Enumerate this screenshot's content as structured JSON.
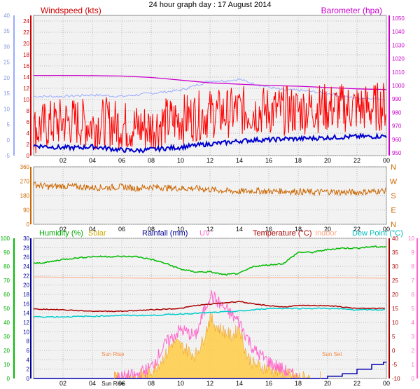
{
  "title": "24 hour graph day : 17 August 2014",
  "chart_data": [
    {
      "type": "line",
      "name": "wind-barometer",
      "labels": {
        "windspeed": "Windspeed (kts)",
        "barometer": "Barometer (hpa)"
      },
      "x_ticks": [
        "02",
        "04",
        "06",
        "08",
        "10",
        "12",
        "14",
        "16",
        "18",
        "20",
        "22",
        "00"
      ],
      "x_range": [
        0,
        24
      ],
      "axis_kts": {
        "range": [
          0,
          25
        ],
        "ticks": [
          "0",
          "2",
          "4",
          "6",
          "8",
          "10",
          "12",
          "14",
          "16",
          "18",
          "20",
          "22",
          "24"
        ]
      },
      "axis_f": {
        "range": [
          -5,
          40
        ],
        "ticks": [
          "-5",
          "0",
          "5",
          "10",
          "15",
          "20",
          "25",
          "30",
          "35",
          "40"
        ]
      },
      "axis_hpa": {
        "range": [
          948,
          1052
        ],
        "ticks": [
          "950",
          "960",
          "970",
          "980",
          "990",
          "1000",
          "1010",
          "1020",
          "1030",
          "1040",
          "1050"
        ]
      },
      "series": [
        {
          "key": "gust",
          "color": "#ff0000",
          "values": [
            [
              0,
              4.5
            ],
            [
              1,
              5.5
            ],
            [
              2,
              6
            ],
            [
              3,
              6
            ],
            [
              4,
              5.5
            ],
            [
              5,
              6
            ],
            [
              6,
              5.5
            ],
            [
              7,
              5
            ],
            [
              8,
              5
            ],
            [
              9,
              6
            ],
            [
              10,
              6.5
            ],
            [
              11,
              7
            ],
            [
              12,
              7.5
            ],
            [
              13,
              7.5
            ],
            [
              14,
              8
            ],
            [
              15,
              8
            ],
            [
              16,
              8
            ],
            [
              17,
              8
            ],
            [
              18,
              8
            ],
            [
              19,
              8.5
            ],
            [
              20,
              8.5
            ],
            [
              21,
              8.5
            ],
            [
              22,
              8.5
            ],
            [
              23,
              8.5
            ],
            [
              24,
              9
            ]
          ]
        },
        {
          "key": "average",
          "color": "#0000cc",
          "values": [
            [
              0,
              1.8
            ],
            [
              1,
              1.6
            ],
            [
              2,
              1.4
            ],
            [
              3,
              1.4
            ],
            [
              4,
              1.6
            ],
            [
              5,
              1.3
            ],
            [
              6,
              1
            ],
            [
              7,
              0.9
            ],
            [
              8,
              1.1
            ],
            [
              9,
              1.3
            ],
            [
              10,
              1.5
            ],
            [
              11,
              1.8
            ],
            [
              12,
              2.1
            ],
            [
              13,
              2.3
            ],
            [
              14,
              2.6
            ],
            [
              15,
              2.8
            ],
            [
              16,
              2.8
            ],
            [
              17,
              3
            ],
            [
              18,
              3
            ],
            [
              19,
              3.1
            ],
            [
              20,
              3.2
            ],
            [
              21,
              3.3
            ],
            [
              22,
              3.4
            ],
            [
              23,
              3.4
            ],
            [
              24,
              3.5
            ]
          ]
        },
        {
          "key": "barometer",
          "color": "#cc00cc",
          "values": [
            [
              0,
              1007.5
            ],
            [
              3,
              1007.5
            ],
            [
              6,
              1007
            ],
            [
              8,
              1006
            ],
            [
              10,
              1004
            ],
            [
              12,
              1002
            ],
            [
              14,
              1001
            ],
            [
              16,
              1000
            ],
            [
              18,
              999.5
            ],
            [
              20,
              998.5
            ],
            [
              22,
              997.5
            ],
            [
              24,
              997
            ]
          ]
        },
        {
          "key": "lightblue",
          "color": "#99aaff",
          "values": [
            [
              0,
              14
            ],
            [
              2,
              14
            ],
            [
              4,
              14.5
            ],
            [
              6,
              14
            ],
            [
              8,
              15
            ],
            [
              10,
              16
            ],
            [
              11,
              17.5
            ],
            [
              12,
              19
            ],
            [
              13,
              19
            ],
            [
              14,
              19.5
            ],
            [
              15,
              18
            ],
            [
              16,
              17
            ],
            [
              17,
              16
            ],
            [
              18,
              16
            ],
            [
              19,
              15.5
            ],
            [
              20,
              15
            ],
            [
              21,
              14
            ],
            [
              22,
              13.5
            ],
            [
              23,
              13.5
            ],
            [
              24,
              13
            ]
          ]
        }
      ]
    },
    {
      "type": "line",
      "name": "wind-direction",
      "y_ticks": [
        "0",
        "90",
        "180",
        "270",
        "360"
      ],
      "y_range": [
        0,
        360
      ],
      "compass": [
        "N",
        "W",
        "S",
        "E",
        "N"
      ],
      "x_ticks": [
        "02",
        "04",
        "06",
        "08",
        "10",
        "12",
        "14",
        "16",
        "18",
        "20",
        "22",
        "00"
      ],
      "series": [
        {
          "key": "direction",
          "color": "#cc6600",
          "values": [
            [
              0,
              250
            ],
            [
              1,
              235
            ],
            [
              2,
              240
            ],
            [
              3,
              235
            ],
            [
              4,
              230
            ],
            [
              5,
              230
            ],
            [
              6,
              235
            ],
            [
              7,
              225
            ],
            [
              8,
              235
            ],
            [
              9,
              228
            ],
            [
              10,
              225
            ],
            [
              11,
              225
            ],
            [
              12,
              218
            ],
            [
              13,
              210
            ],
            [
              14,
              205
            ],
            [
              15,
              210
            ],
            [
              16,
              205
            ],
            [
              17,
              208
            ],
            [
              18,
              205
            ],
            [
              19,
              200
            ],
            [
              20,
              205
            ],
            [
              21,
              200
            ],
            [
              22,
              200
            ],
            [
              23,
              205
            ],
            [
              24,
              210
            ]
          ]
        }
      ]
    },
    {
      "type": "line",
      "name": "temperature-humidity-rain-solar",
      "labels": {
        "humidity": "Humidity (%)",
        "solar": "Solar",
        "rainfall": "Rainfall (mm)",
        "uv": "UV",
        "temperature": "Temperature (°C)",
        "indoor": "Indoor",
        "dewpoint": "Dew Point (°C)"
      },
      "x_ticks": [
        "02",
        "04",
        "06",
        "08",
        "10",
        "12",
        "14",
        "16",
        "18",
        "20",
        "22",
        "00"
      ],
      "sun_rise_label": "Sun Rise",
      "sun_set_label": "Sun Set",
      "sun_rise_hour": 5.5,
      "sun_set_hour": 19.5,
      "axis_humidity": {
        "range": [
          0,
          100
        ],
        "ticks": [
          "0",
          "10",
          "20",
          "30",
          "40",
          "50",
          "60",
          "70",
          "80",
          "90",
          "100"
        ]
      },
      "axis_mm": {
        "range": [
          0,
          30
        ],
        "ticks": [
          "0",
          "2",
          "4",
          "6",
          "8",
          "10",
          "12",
          "14",
          "16",
          "18",
          "20",
          "22",
          "24",
          "26",
          "28",
          "30"
        ]
      },
      "axis_temp": {
        "range": [
          -10,
          40
        ],
        "ticks": [
          "-10",
          "-5",
          "0",
          "5",
          "10",
          "15",
          "20",
          "25",
          "30",
          "35",
          "40"
        ]
      },
      "axis_uv": {
        "range": [
          0,
          10
        ],
        "ticks": [
          "0",
          "1",
          "2",
          "3",
          "4",
          "5",
          "6",
          "7",
          "8",
          "9",
          "10"
        ]
      },
      "series": [
        {
          "key": "humidity",
          "color": "#00bb00",
          "values": [
            [
              0,
              82
            ],
            [
              1,
              83
            ],
            [
              2,
              85
            ],
            [
              3,
              86
            ],
            [
              4,
              87
            ],
            [
              5,
              87
            ],
            [
              6,
              87
            ],
            [
              7,
              87
            ],
            [
              8,
              85
            ],
            [
              9,
              82
            ],
            [
              10,
              78
            ],
            [
              11,
              76
            ],
            [
              12,
              76
            ],
            [
              13,
              74
            ],
            [
              14,
              75
            ],
            [
              15,
              80
            ],
            [
              16,
              81
            ],
            [
              17,
              82
            ],
            [
              18,
              90
            ],
            [
              19,
              90
            ],
            [
              20,
              92
            ],
            [
              21,
              93
            ],
            [
              22,
              93
            ],
            [
              23,
              94
            ],
            [
              24,
              94
            ]
          ]
        },
        {
          "key": "indoor",
          "color": "#ffaa88",
          "values": [
            [
              0,
              72.5
            ],
            [
              4,
              72
            ],
            [
              8,
              71.5
            ],
            [
              12,
              71.5
            ],
            [
              16,
              72
            ],
            [
              20,
              72
            ],
            [
              24,
              71.5
            ]
          ]
        },
        {
          "key": "temperature",
          "color": "#aa0000",
          "values": [
            [
              0,
              14.8
            ],
            [
              2,
              14.5
            ],
            [
              4,
              14
            ],
            [
              6,
              14
            ],
            [
              8,
              14.5
            ],
            [
              10,
              15
            ],
            [
              11,
              16
            ],
            [
              12,
              16.5
            ],
            [
              13,
              17
            ],
            [
              14,
              17.5
            ],
            [
              15,
              16.5
            ],
            [
              16,
              16
            ],
            [
              17,
              15.5
            ],
            [
              18,
              16
            ],
            [
              19,
              16
            ],
            [
              20,
              16
            ],
            [
              22,
              15
            ],
            [
              24,
              15
            ]
          ]
        },
        {
          "key": "dewpoint",
          "color": "#00cccc",
          "values": [
            [
              0,
              12
            ],
            [
              2,
              12
            ],
            [
              4,
              12.2
            ],
            [
              6,
              12.5
            ],
            [
              8,
              12.5
            ],
            [
              10,
              13
            ],
            [
              12,
              13.5
            ],
            [
              14,
              14
            ],
            [
              16,
              15
            ],
            [
              18,
              15
            ],
            [
              20,
              15
            ],
            [
              22,
              14.5
            ],
            [
              24,
              14.5
            ]
          ]
        },
        {
          "key": "solar",
          "color": "#ffcc44",
          "values": [
            [
              5.5,
              0
            ],
            [
              6,
              0.1
            ],
            [
              7,
              0.5
            ],
            [
              8,
              1.5
            ],
            [
              9,
              5
            ],
            [
              9.5,
              8
            ],
            [
              10,
              7
            ],
            [
              10.5,
              6
            ],
            [
              11,
              5
            ],
            [
              11.5,
              8
            ],
            [
              12,
              13
            ],
            [
              12.5,
              11
            ],
            [
              13,
              10
            ],
            [
              13.5,
              9
            ],
            [
              14,
              11
            ],
            [
              14.5,
              5
            ],
            [
              15,
              3
            ],
            [
              16,
              2
            ],
            [
              17,
              1
            ],
            [
              18,
              0.3
            ],
            [
              19,
              0
            ]
          ]
        },
        {
          "key": "uv",
          "color": "#ff66cc",
          "values": [
            [
              5.5,
              0
            ],
            [
              7,
              0.2
            ],
            [
              8,
              0.8
            ],
            [
              9,
              2.5
            ],
            [
              10,
              3.5
            ],
            [
              11,
              3
            ],
            [
              12,
              6
            ],
            [
              13,
              5
            ],
            [
              14,
              4
            ],
            [
              15,
              2
            ],
            [
              16,
              1.2
            ],
            [
              17,
              0.6
            ],
            [
              18,
              0
            ]
          ]
        },
        {
          "key": "rainfall",
          "color": "#0000aa",
          "values": [
            [
              0,
              0
            ],
            [
              19,
              0
            ],
            [
              20,
              0.5
            ],
            [
              21,
              1
            ],
            [
              22,
              2
            ],
            [
              23,
              3
            ],
            [
              23.8,
              3.5
            ],
            [
              24,
              3.5
            ]
          ]
        }
      ]
    }
  ]
}
